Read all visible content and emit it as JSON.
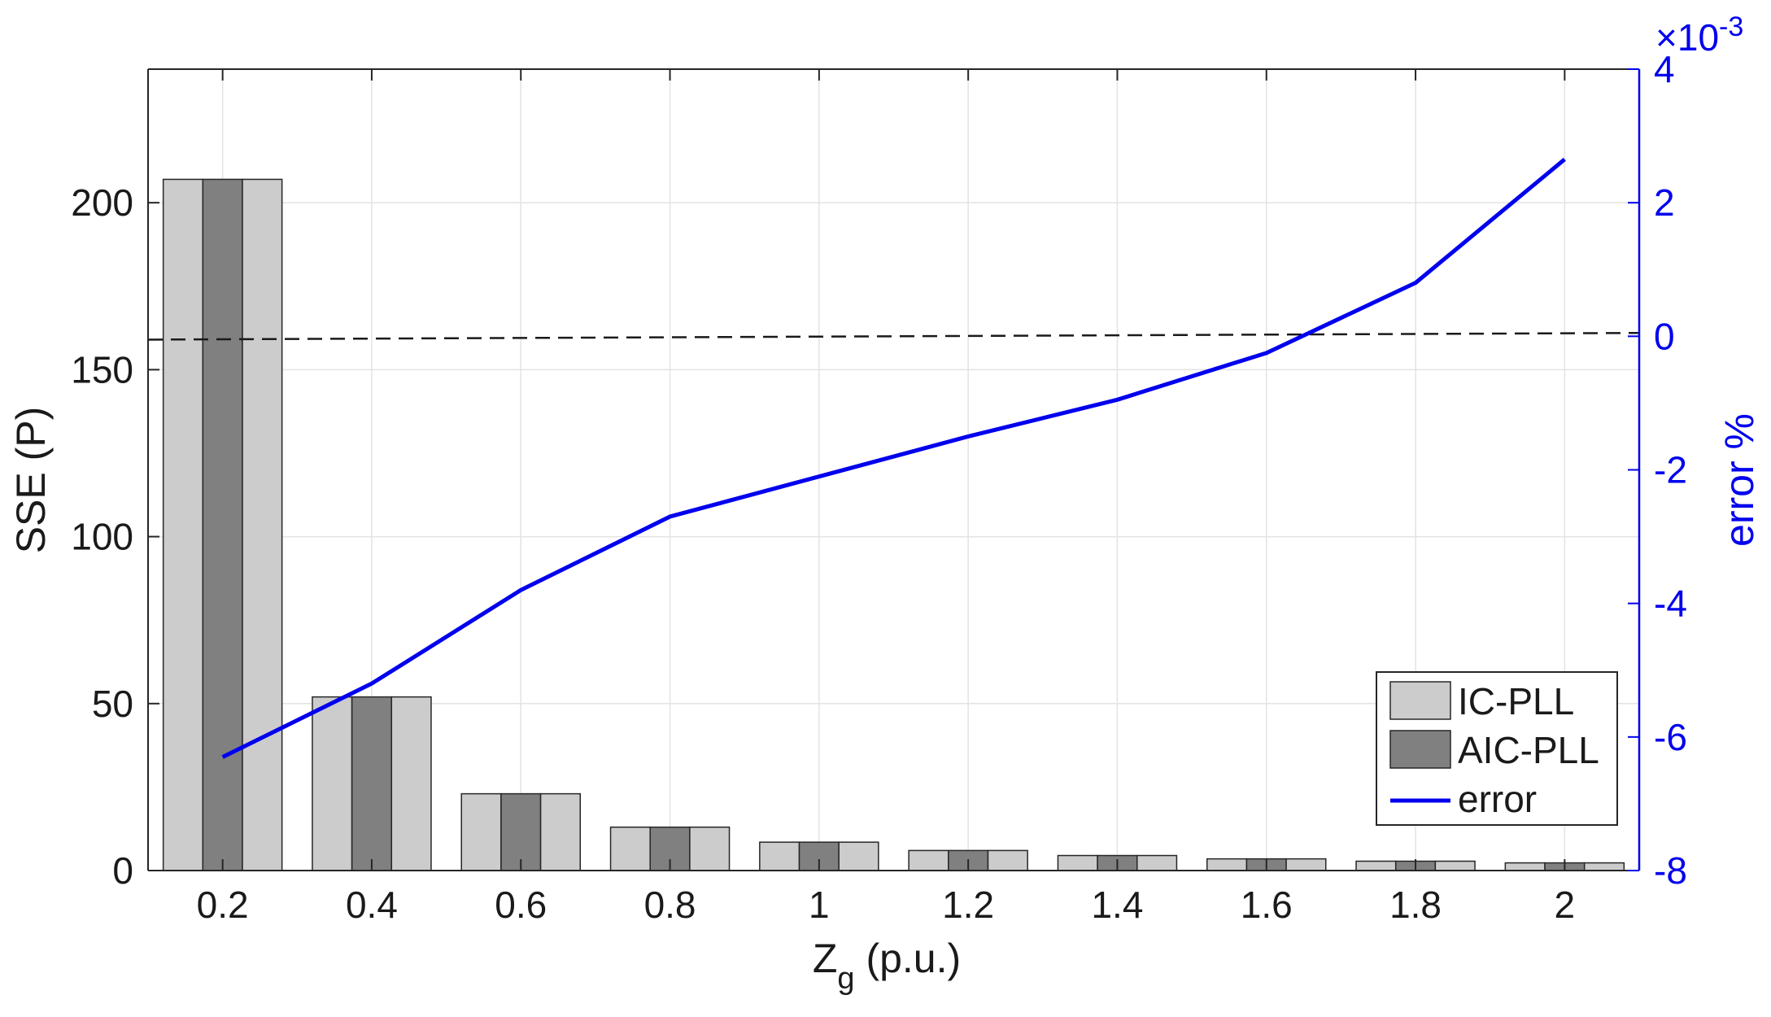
{
  "chart_data": {
    "type": "bar",
    "xlabel_main": "Z",
    "xlabel_sub": "g",
    "xlabel_rest": " (p.u.)",
    "ylabel": "SSE (P)",
    "ylabel_right": "error %",
    "right_exponent_base": "×10",
    "right_exponent_power": "-3",
    "categories": [
      "0.2",
      "0.4",
      "0.6",
      "0.8",
      "1",
      "1.2",
      "1.4",
      "1.6",
      "1.8",
      "2"
    ],
    "x": [
      0.2,
      0.4,
      0.6,
      0.8,
      1.0,
      1.2,
      1.4,
      1.6,
      1.8,
      2.0
    ],
    "xlim": [
      0.1,
      2.1
    ],
    "ylim": [
      0,
      240
    ],
    "yticks": [
      0,
      50,
      100,
      150,
      200
    ],
    "ylim_right": [
      -8,
      4
    ],
    "yticks_right": [
      -8,
      -6,
      -4,
      -2,
      0,
      2,
      4
    ],
    "grid": true,
    "legend_position": "bottom-right",
    "series": [
      {
        "name": "IC-PLL",
        "kind": "bar",
        "color": "#cccccc",
        "values": [
          207,
          52,
          23,
          13,
          8.5,
          6,
          4.5,
          3.5,
          2.8,
          2.3
        ]
      },
      {
        "name": "AIC-PLL",
        "kind": "bar",
        "color": "#808080",
        "values": [
          207,
          52,
          23,
          13,
          8.5,
          6,
          4.5,
          3.5,
          2.8,
          2.3
        ]
      },
      {
        "name": "error",
        "kind": "line",
        "axis": "right",
        "color": "#0000ee",
        "values": [
          -6.3,
          -5.2,
          -3.8,
          -2.7,
          -2.1,
          -1.5,
          -0.95,
          -0.25,
          0.8,
          2.65
        ]
      }
    ],
    "reference_line": {
      "kind": "dashed",
      "axis": "right",
      "values": [
        -0.05,
        0.05
      ]
    }
  }
}
